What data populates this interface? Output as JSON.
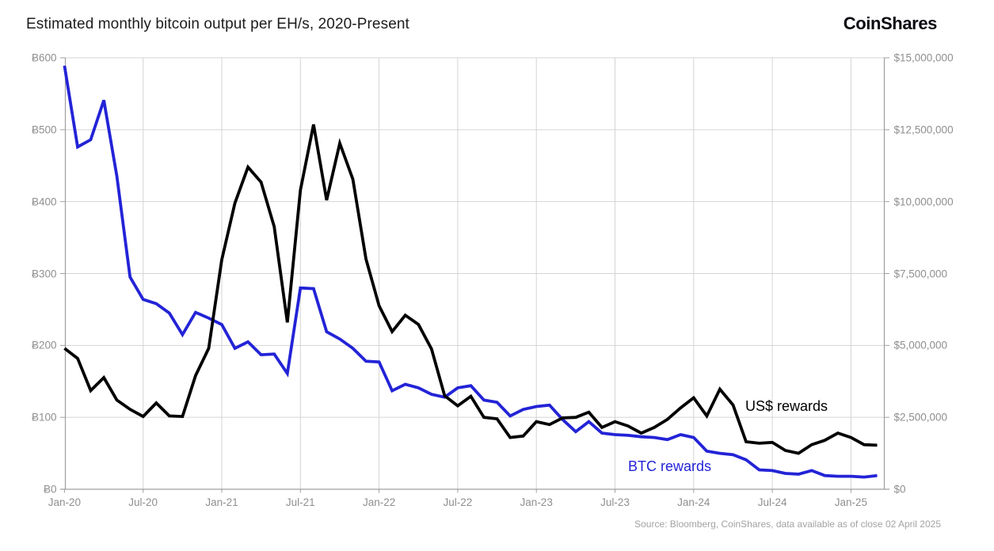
{
  "header": {
    "title": "Estimated monthly bitcoin output per EH/s, 2020-Present",
    "logo": "CoinShares"
  },
  "annotations": {
    "usd_series_label": "US$ rewards",
    "btc_series_label": "BTC rewards"
  },
  "footer": {
    "source": "Source: Bloomberg, CoinShares, data available as of close 02 April 2025"
  },
  "colors": {
    "btc_line": "#2323d7",
    "usd_line": "#000000",
    "grid": "#d4d4d4",
    "axis": "#9f9f9f",
    "tick_text": "#8f8f8f"
  },
  "chart_data": {
    "type": "line",
    "title": "Estimated monthly bitcoin output per EH/s, 2020-Present",
    "x_start": "Jan-20",
    "x_end": "Mar-25",
    "x_interval": "monthly",
    "x_tick_labels": [
      "Jan-20",
      "Jul-20",
      "Jan-21",
      "Jul-21",
      "Jan-22",
      "Jul-22",
      "Jan-23",
      "Jul-23",
      "Jan-24",
      "Jul-24",
      "Jan-25"
    ],
    "grid": true,
    "left_axis": {
      "unit": "BTC per EH/s",
      "range": [
        0,
        600
      ],
      "tick_values": [
        600,
        500,
        400,
        300,
        200,
        100,
        0
      ],
      "tick_labels": [
        "Ƀ600",
        "Ƀ500",
        "Ƀ400",
        "Ƀ300",
        "Ƀ200",
        "Ƀ100",
        "Ƀ0"
      ]
    },
    "right_axis": {
      "unit": "US$ per EH/s",
      "range": [
        0,
        15000000
      ],
      "tick_values": [
        15000000,
        12500000,
        10000000,
        7500000,
        5000000,
        2500000,
        0
      ],
      "tick_labels": [
        "$15,000,000",
        "$12,500,000",
        "$10,000,000",
        "$7,500,000",
        "$5,000,000",
        "$2,500,000",
        "$0"
      ]
    },
    "series": [
      {
        "name": "BTC rewards",
        "axis": "left",
        "color": "#2323d7",
        "values": [
          589,
          476,
          486,
          541,
          435,
          295,
          264,
          258,
          245,
          215,
          246,
          238,
          229,
          196,
          205,
          187,
          188,
          161,
          280,
          279,
          219,
          209,
          196,
          178,
          177,
          137,
          146,
          141,
          132,
          128,
          141,
          144,
          124,
          121,
          102,
          111,
          115,
          117,
          97,
          80,
          94,
          78,
          76,
          75,
          73,
          72,
          69,
          76,
          72,
          53,
          50,
          48,
          41,
          27,
          26,
          22,
          21,
          26,
          19,
          18,
          18,
          17,
          19
        ]
      },
      {
        "name": "US$ rewards",
        "axis": "right",
        "color": "#000000",
        "values": [
          4900000,
          4550000,
          3430000,
          3880000,
          3100000,
          2780000,
          2530000,
          3000000,
          2550000,
          2530000,
          3950000,
          4900000,
          7980000,
          9950000,
          11200000,
          10680000,
          9130000,
          5800000,
          10400000,
          12680000,
          10050000,
          12030000,
          10780000,
          8000000,
          6380000,
          5480000,
          6050000,
          5730000,
          4880000,
          3250000,
          2900000,
          3230000,
          2500000,
          2450000,
          1800000,
          1850000,
          2350000,
          2250000,
          2480000,
          2500000,
          2680000,
          2150000,
          2350000,
          2200000,
          1950000,
          2150000,
          2430000,
          2830000,
          3180000,
          2550000,
          3480000,
          2930000,
          1650000,
          1600000,
          1630000,
          1350000,
          1250000,
          1550000,
          1700000,
          1950000,
          1800000,
          1550000,
          1530000
        ]
      }
    ],
    "legend_position": "inline-annotations"
  }
}
